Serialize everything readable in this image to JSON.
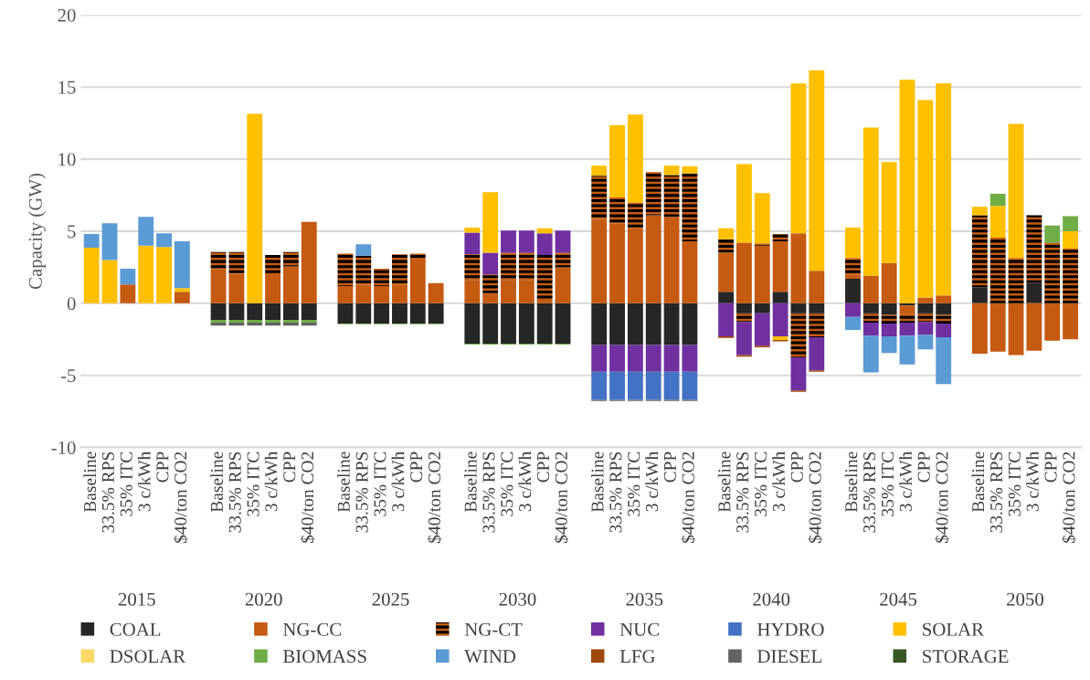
{
  "chart_data": {
    "type": "bar",
    "stacked": true,
    "ylabel": "Capacity (GW)",
    "categories": [
      "Baseline",
      "33.5% RPS",
      "35% ITC",
      "3 c/kWh",
      "CPP",
      "$40/ton CO2",
      null,
      "Baseline",
      "33.5% RPS",
      "35% ITC",
      "3 c/kWh",
      "CPP",
      "$40/ton CO2",
      null,
      "Baseline",
      "33.5% RPS",
      "35% ITC",
      "3 c/kWh",
      "CPP",
      "$40/ton CO2",
      null,
      "Baseline",
      "33.5% RPS",
      "35% ITC",
      "3 c/kWh",
      "CPP",
      "$40/ton CO2",
      null,
      "Baseline",
      "33.5% RPS",
      "35% ITC",
      "3 c/kWh",
      "CPP",
      "$40/ton CO2",
      null,
      "Baseline",
      "33.5% RPS",
      "35% ITC",
      "3 c/kWh",
      "CPP",
      "$40/ton CO2",
      null,
      "Baseline",
      "33.5% RPS",
      "35% ITC",
      "3 c/kWh",
      "CPP",
      "$40/ton CO2",
      null,
      "Baseline",
      "33.5% RPS",
      "35% ITC",
      "3 c/kWh",
      "CPP",
      "$40/ton CO2"
    ],
    "annotations": [
      "2015",
      "2020",
      "2025",
      "2030",
      "2035",
      "2040",
      "2045",
      "2050"
    ],
    "ylim": [
      -10,
      20
    ],
    "yticks": [
      -10,
      -5,
      0,
      5,
      10,
      15,
      20
    ],
    "grid": "y",
    "legend": "bottom",
    "series": [
      {
        "name": "COAL",
        "color": "#262626",
        "values": [
          null,
          null,
          null,
          null,
          null,
          null,
          null,
          -1.15,
          -1.15,
          -1.15,
          -1.15,
          -1.15,
          -1.15,
          null,
          -1.4,
          -1.4,
          -1.4,
          -1.4,
          -1.4,
          -1.4,
          null,
          -2.8,
          -2.8,
          -2.8,
          -2.8,
          -2.8,
          -2.8,
          null,
          -2.9,
          -2.9,
          -2.9,
          -2.9,
          -2.9,
          -2.9,
          null,
          0.8,
          -0.7,
          -0.7,
          0.8,
          -0.7,
          -0.7,
          null,
          1.7,
          -0.7,
          -0.8,
          -0.15,
          -0.7,
          -0.8,
          null,
          1.1,
          null,
          null,
          1.4,
          null,
          null
        ]
      },
      {
        "name": "NG-CC",
        "color": "#c55a11",
        "values": [
          null,
          null,
          1.3,
          null,
          null,
          0.8,
          null,
          2.35,
          2.05,
          null,
          1.95,
          2.55,
          5.65,
          null,
          1.2,
          1.3,
          1.2,
          1.3,
          3.1,
          1.4,
          null,
          1.6,
          0.7,
          1.6,
          1.6,
          0.3,
          2.5,
          null,
          5.85,
          5.55,
          5.2,
          6.1,
          6.0,
          4.3,
          null,
          2.7,
          4.2,
          4.0,
          3.5,
          4.85,
          2.25,
          null,
          0.3,
          1.9,
          2.8,
          -0.6,
          0.4,
          0.55,
          null,
          -3.5,
          -3.35,
          -3.6,
          -3.3,
          -2.6,
          -2.5
        ]
      },
      {
        "name": "NG-CT",
        "color": "#c55a11",
        "values": [
          null,
          null,
          null,
          null,
          null,
          null,
          null,
          1.2,
          1.5,
          null,
          1.4,
          1.0,
          null,
          null,
          2.25,
          2.0,
          1.2,
          2.1,
          0.35,
          null,
          null,
          1.8,
          1.3,
          1.9,
          1.9,
          3.05,
          1.0,
          null,
          3.0,
          1.8,
          1.8,
          3.0,
          2.9,
          4.7,
          null,
          0.95,
          -0.6,
          0.15,
          0.5,
          -3.05,
          -1.65,
          null,
          1.15,
          -0.65,
          -0.6,
          -0.6,
          -0.6,
          -0.6,
          null,
          5.0,
          4.55,
          3.15,
          4.7,
          4.2,
          3.8
        ]
      },
      {
        "name": "NUC",
        "color": "#7030a0",
        "values": [
          null,
          null,
          null,
          null,
          null,
          null,
          null,
          null,
          null,
          null,
          null,
          null,
          null,
          null,
          null,
          null,
          null,
          null,
          null,
          null,
          null,
          1.5,
          1.5,
          1.55,
          1.55,
          1.5,
          1.55,
          null,
          -1.85,
          -1.85,
          -1.85,
          -1.85,
          -1.85,
          -1.85,
          null,
          -2.3,
          -2.3,
          -2.25,
          -2.3,
          -2.3,
          -2.3,
          null,
          -0.95,
          -0.9,
          -0.9,
          -0.9,
          -0.9,
          -0.95,
          null,
          null,
          null,
          null,
          null,
          null,
          null
        ]
      },
      {
        "name": "HYDRO",
        "color": "#4472c4",
        "values": [
          null,
          null,
          null,
          null,
          null,
          null,
          null,
          null,
          null,
          null,
          null,
          null,
          null,
          null,
          null,
          null,
          null,
          null,
          null,
          null,
          null,
          null,
          null,
          null,
          null,
          null,
          null,
          null,
          -1.95,
          -1.95,
          -1.95,
          -1.95,
          -1.95,
          -1.95,
          null,
          null,
          null,
          null,
          null,
          null,
          null,
          null,
          null,
          null,
          null,
          null,
          null,
          null,
          null,
          null,
          null,
          null,
          null,
          null,
          null
        ]
      },
      {
        "name": "SOLAR",
        "color": "#ffc000",
        "values": [
          3.85,
          3.0,
          null,
          4.0,
          3.9,
          0.25,
          null,
          null,
          null,
          13.15,
          null,
          null,
          null,
          null,
          null,
          null,
          null,
          null,
          null,
          null,
          null,
          0.35,
          4.2,
          null,
          null,
          0.35,
          null,
          null,
          0.7,
          5.0,
          6.1,
          null,
          0.65,
          0.5,
          null,
          0.75,
          5.45,
          3.5,
          -0.25,
          10.4,
          13.9,
          null,
          2.1,
          10.3,
          7.0,
          15.5,
          13.7,
          14.7,
          null,
          0.6,
          2.2,
          9.3,
          null,
          null,
          1.2
        ]
      },
      {
        "name": "DSOLAR",
        "color": "#ffd966",
        "values": [
          null,
          null,
          null,
          null,
          null,
          null,
          null,
          null,
          null,
          null,
          null,
          null,
          null,
          null,
          null,
          null,
          null,
          null,
          null,
          null,
          null,
          null,
          null,
          null,
          null,
          null,
          null,
          null,
          null,
          null,
          null,
          null,
          null,
          null,
          null,
          null,
          null,
          null,
          null,
          null,
          null,
          null,
          null,
          null,
          null,
          null,
          null,
          null,
          null,
          null,
          null,
          null,
          null,
          null,
          null
        ]
      },
      {
        "name": "BIOMASS",
        "color": "#70ad47",
        "values": [
          null,
          null,
          null,
          null,
          null,
          null,
          null,
          -0.2,
          -0.2,
          -0.2,
          -0.2,
          -0.2,
          -0.2,
          null,
          -0.05,
          -0.05,
          -0.05,
          -0.05,
          -0.05,
          -0.05,
          null,
          -0.06,
          -0.06,
          -0.06,
          -0.06,
          -0.06,
          -0.06,
          null,
          null,
          null,
          null,
          null,
          null,
          null,
          null,
          null,
          null,
          null,
          null,
          null,
          null,
          null,
          null,
          null,
          null,
          null,
          null,
          null,
          null,
          null,
          0.85,
          null,
          null,
          1.2,
          1.05
        ]
      },
      {
        "name": "WIND",
        "color": "#5b9bd5",
        "values": [
          0.95,
          2.55,
          1.1,
          2.0,
          0.95,
          3.25,
          null,
          null,
          null,
          null,
          null,
          null,
          null,
          null,
          null,
          0.8,
          null,
          null,
          null,
          null,
          null,
          null,
          null,
          null,
          null,
          null,
          null,
          null,
          null,
          null,
          null,
          null,
          null,
          null,
          null,
          null,
          null,
          null,
          null,
          null,
          null,
          null,
          -0.9,
          -2.55,
          -1.15,
          -2.0,
          -1.0,
          -3.25,
          null,
          null,
          null,
          null,
          null,
          null,
          null
        ]
      },
      {
        "name": "LFG",
        "color": "#9e480e",
        "values": [
          null,
          null,
          null,
          null,
          null,
          null,
          null,
          null,
          null,
          null,
          null,
          null,
          null,
          null,
          null,
          null,
          null,
          null,
          null,
          null,
          null,
          null,
          null,
          null,
          null,
          null,
          null,
          null,
          null,
          null,
          null,
          null,
          null,
          null,
          null,
          -0.1,
          -0.1,
          -0.1,
          -0.1,
          -0.1,
          -0.1,
          null,
          null,
          null,
          null,
          null,
          null,
          null,
          null,
          null,
          null,
          null,
          null,
          null,
          null
        ]
      },
      {
        "name": "DIESEL",
        "color": "#636363",
        "values": [
          null,
          null,
          null,
          null,
          null,
          null,
          null,
          -0.2,
          -0.2,
          -0.2,
          -0.2,
          -0.2,
          -0.2,
          null,
          null,
          null,
          null,
          null,
          null,
          null,
          null,
          null,
          null,
          null,
          null,
          null,
          null,
          null,
          -0.08,
          -0.08,
          -0.08,
          -0.08,
          -0.08,
          -0.08,
          null,
          null,
          null,
          null,
          null,
          null,
          null,
          null,
          null,
          null,
          null,
          null,
          null,
          null,
          null,
          null,
          null,
          null,
          null,
          null,
          null
        ]
      },
      {
        "name": "STORAGE",
        "color": "#375623",
        "values": [
          null,
          null,
          null,
          null,
          null,
          null,
          null,
          null,
          null,
          null,
          null,
          null,
          null,
          null,
          null,
          null,
          null,
          null,
          null,
          null,
          null,
          null,
          null,
          null,
          null,
          null,
          null,
          null,
          null,
          null,
          null,
          null,
          null,
          null,
          null,
          null,
          null,
          null,
          null,
          null,
          null,
          null,
          null,
          null,
          null,
          null,
          null,
          null,
          null,
          null,
          null,
          null,
          null,
          null,
          null
        ]
      }
    ]
  }
}
